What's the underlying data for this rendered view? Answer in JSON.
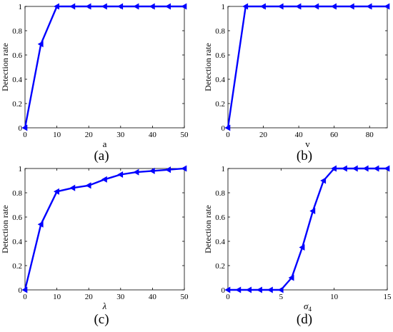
{
  "figure": {
    "captions": [
      "(a)",
      "(b)",
      "(c)",
      "(d)"
    ]
  },
  "style": {
    "series_color": "#0000ff",
    "axis_color": "#000000"
  },
  "chart_data": [
    {
      "type": "line",
      "xlabel": "a",
      "xlabel_sub": "",
      "ylabel": "Detection rate",
      "xlim": [
        0,
        50
      ],
      "ylim": [
        0,
        1
      ],
      "xticks": [
        0,
        10,
        20,
        30,
        40,
        50
      ],
      "xtick_labels": [
        "0",
        "10",
        "20",
        "30",
        "40",
        "50"
      ],
      "yticks": [
        0,
        0.2,
        0.4,
        0.6,
        0.8,
        1
      ],
      "ytick_labels": [
        "0",
        "0.2",
        "0.4",
        "0.6",
        "0.8",
        "1"
      ],
      "x": [
        0,
        5,
        10,
        15,
        20,
        25,
        30,
        35,
        40,
        45,
        50
      ],
      "y": [
        0,
        0.69,
        1,
        1,
        1,
        1,
        1,
        1,
        1,
        1,
        1
      ]
    },
    {
      "type": "line",
      "xlabel": "v",
      "xlabel_sub": "",
      "ylabel": "Detection rate",
      "xlim": [
        0,
        90
      ],
      "ylim": [
        0,
        1
      ],
      "xticks": [
        0,
        20,
        40,
        60,
        80
      ],
      "xtick_labels": [
        "0",
        "20",
        "40",
        "60",
        "80"
      ],
      "yticks": [
        0,
        0.2,
        0.4,
        0.6,
        0.8,
        1
      ],
      "ytick_labels": [
        "0",
        "0.2",
        "0.4",
        "0.6",
        "0.8",
        "1"
      ],
      "x": [
        0,
        10,
        20,
        30,
        40,
        50,
        60,
        70,
        80,
        90
      ],
      "y": [
        0,
        1,
        1,
        1,
        1,
        1,
        1,
        1,
        1,
        1
      ]
    },
    {
      "type": "line",
      "xlabel": "λ",
      "xlabel_sub": "",
      "ylabel": "Detection rate",
      "xlim": [
        0,
        50
      ],
      "ylim": [
        0,
        1
      ],
      "xticks": [
        0,
        10,
        20,
        30,
        40,
        50
      ],
      "xtick_labels": [
        "0",
        "10",
        "20",
        "30",
        "40",
        "50"
      ],
      "yticks": [
        0,
        0.2,
        0.4,
        0.6,
        0.8,
        1
      ],
      "ytick_labels": [
        "0",
        "0.2",
        "0.4",
        "0.6",
        "0.8",
        "1"
      ],
      "x": [
        0,
        5,
        10,
        15,
        20,
        25,
        30,
        35,
        40,
        45,
        50
      ],
      "y": [
        0,
        0.54,
        0.81,
        0.84,
        0.86,
        0.91,
        0.95,
        0.97,
        0.98,
        0.99,
        1
      ]
    },
    {
      "type": "line",
      "xlabel": "σ",
      "xlabel_sub": "4",
      "ylabel": "Detection rate",
      "xlim": [
        0,
        15
      ],
      "ylim": [
        0,
        1
      ],
      "xticks": [
        0,
        5,
        10,
        15
      ],
      "xtick_labels": [
        "0",
        "5",
        "10",
        "15"
      ],
      "yticks": [
        0,
        0.2,
        0.4,
        0.6,
        0.8,
        1
      ],
      "ytick_labels": [
        "0",
        "0.2",
        "0.4",
        "0.6",
        "0.8",
        "1"
      ],
      "x": [
        0,
        1,
        2,
        3,
        4,
        5,
        6,
        7,
        8,
        9,
        10,
        11,
        12,
        13,
        14,
        15
      ],
      "y": [
        0,
        0,
        0,
        0,
        0,
        0,
        0.1,
        0.35,
        0.65,
        0.9,
        1,
        1,
        1,
        1,
        1,
        1
      ]
    }
  ]
}
